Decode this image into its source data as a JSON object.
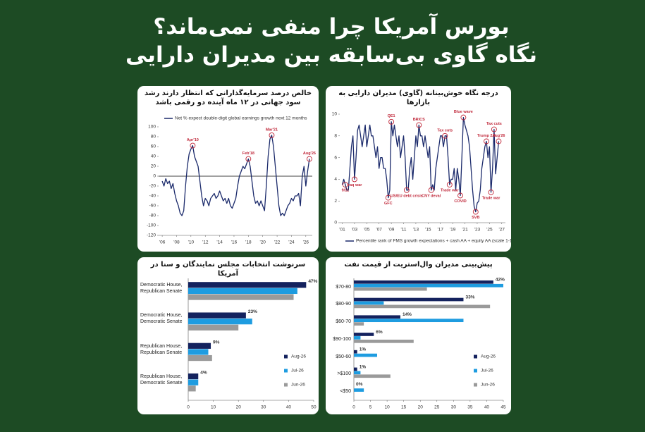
{
  "header": {
    "title_lines": [
      "بورس آمریکا چرا منفی نمی‌ماند؟",
      "نگاه گاوی بی‌سابقه بین مدیران دارایی"
    ]
  },
  "chart_data": [
    {
      "type": "line",
      "title": "خالص درصد سرمایه‌گذارانی که انتظار دارند رشد سود جهانی در ۱۲ ماه آینده دو رقمی باشد",
      "x": [
        2006,
        2006.25,
        2006.5,
        2006.75,
        2007,
        2007.25,
        2007.5,
        2007.75,
        2008,
        2008.25,
        2008.5,
        2008.75,
        2009,
        2009.25,
        2009.5,
        2009.75,
        2010,
        2010.25,
        2010.5,
        2010.75,
        2011,
        2011.25,
        2011.5,
        2011.75,
        2012,
        2012.25,
        2012.5,
        2012.75,
        2013,
        2013.25,
        2013.5,
        2013.75,
        2014,
        2014.25,
        2014.5,
        2014.75,
        2015,
        2015.25,
        2015.5,
        2015.75,
        2016,
        2016.25,
        2016.5,
        2016.75,
        2017,
        2017.25,
        2017.5,
        2017.75,
        2018,
        2018.25,
        2018.5,
        2018.75,
        2019,
        2019.25,
        2019.5,
        2019.75,
        2020,
        2020.25,
        2020.5,
        2020.75,
        2021,
        2021.25,
        2021.5,
        2021.75,
        2022,
        2022.25,
        2022.5,
        2022.75,
        2023,
        2023.25,
        2023.5,
        2023.75,
        2024,
        2024.25,
        2024.5,
        2024.75,
        2025,
        2025.25,
        2025.5,
        2025.75,
        2026,
        2026.25,
        2026.5
      ],
      "series": [
        {
          "name": "Net % expect double-digit global earnings growth next 12 months",
          "color": "#1b2a6b",
          "values": [
            -10,
            -20,
            -5,
            -15,
            -10,
            -25,
            -15,
            -35,
            -50,
            -60,
            -75,
            -80,
            -70,
            -20,
            20,
            45,
            55,
            62,
            40,
            30,
            20,
            -10,
            -40,
            -60,
            -45,
            -50,
            -60,
            -45,
            -40,
            -35,
            -45,
            -40,
            -30,
            -40,
            -50,
            -45,
            -55,
            -45,
            -60,
            -65,
            -55,
            -45,
            -20,
            0,
            10,
            20,
            15,
            25,
            35,
            20,
            -10,
            -40,
            -55,
            -50,
            -60,
            -50,
            -60,
            -70,
            -20,
            40,
            75,
            83,
            60,
            20,
            -20,
            -60,
            -80,
            -75,
            -80,
            -70,
            -60,
            -55,
            -45,
            -50,
            -40,
            -40,
            -35,
            -60,
            0,
            20,
            -20,
            10,
            35
          ]
        }
      ],
      "annotations": [
        {
          "label": "Apr'10",
          "x": 2010.25,
          "y": 62,
          "placement": "above"
        },
        {
          "label": "Feb'18",
          "x": 2018,
          "y": 35,
          "placement": "above"
        },
        {
          "label": "Mar'21",
          "x": 2021.25,
          "y": 83,
          "placement": "above"
        },
        {
          "label": "Aug'26",
          "x": 2026.5,
          "y": 35,
          "placement": "above"
        }
      ],
      "xlim": [
        2005.5,
        2026.9
      ],
      "xticks": [
        {
          "value": 2006,
          "label": "'06"
        },
        {
          "value": 2008,
          "label": "'08"
        },
        {
          "value": 2010,
          "label": "'10"
        },
        {
          "value": 2012,
          "label": "'12"
        },
        {
          "value": 2014,
          "label": "'14"
        },
        {
          "value": 2016,
          "label": "'16"
        },
        {
          "value": 2018,
          "label": "'18"
        },
        {
          "value": 2020,
          "label": "'20"
        },
        {
          "value": 2022,
          "label": "'22"
        },
        {
          "value": 2024,
          "label": "'24"
        },
        {
          "value": 2026,
          "label": "'26"
        }
      ],
      "ylim": [
        -120,
        100
      ],
      "yticks": [
        -120,
        -100,
        -80,
        -60,
        -40,
        -20,
        0,
        20,
        40,
        60,
        80,
        100
      ],
      "zero_line": true,
      "legend": "top",
      "annotation_color": "#c0283a"
    },
    {
      "type": "line",
      "title": "درجه نگاه خوش‌بینانه (گاوی) مدیران دارایی به بازارها",
      "x": [
        2001,
        2001.25,
        2001.5,
        2001.75,
        2002,
        2002.25,
        2002.5,
        2002.75,
        2003,
        2003.25,
        2003.5,
        2003.75,
        2004,
        2004.25,
        2004.5,
        2004.75,
        2005,
        2005.25,
        2005.5,
        2005.75,
        2006,
        2006.25,
        2006.5,
        2006.75,
        2007,
        2007.25,
        2007.5,
        2007.75,
        2008,
        2008.25,
        2008.5,
        2008.75,
        2009,
        2009.25,
        2009.5,
        2009.75,
        2010,
        2010.25,
        2010.5,
        2010.75,
        2011,
        2011.25,
        2011.5,
        2011.75,
        2012,
        2012.25,
        2012.5,
        2012.75,
        2013,
        2013.25,
        2013.5,
        2013.75,
        2014,
        2014.25,
        2014.5,
        2014.75,
        2015,
        2015.25,
        2015.5,
        2015.75,
        2016,
        2016.25,
        2016.5,
        2016.75,
        2017,
        2017.25,
        2017.5,
        2017.75,
        2018,
        2018.25,
        2018.5,
        2018.75,
        2019,
        2019.25,
        2019.5,
        2019.75,
        2020,
        2020.25,
        2020.5,
        2020.75,
        2021,
        2021.25,
        2021.5,
        2021.75,
        2022,
        2022.25,
        2022.5,
        2022.75,
        2023,
        2023.25,
        2023.5,
        2023.75,
        2024,
        2024.25,
        2024.5,
        2024.75,
        2025,
        2025.25,
        2025.5,
        2025.75,
        2026,
        2026.25,
        2026.5
      ],
      "series": [
        {
          "name": "Percentile rank of FMS growth expectations + cash AA + equity AA (scale 1-10)",
          "color": "#1b2a6b",
          "values": [
            3.5,
            4,
            3.5,
            3,
            3,
            5,
            7,
            8,
            4,
            6,
            8.5,
            9,
            8,
            7,
            8,
            9,
            7,
            8,
            9,
            8,
            8,
            7,
            6,
            7,
            5,
            6,
            6,
            5,
            5,
            4,
            2.3,
            3,
            9.3,
            8,
            9,
            8,
            7,
            8,
            6,
            7,
            8,
            6,
            3,
            3,
            5,
            6,
            4,
            6,
            8,
            7,
            9,
            8,
            8,
            7,
            8,
            7,
            6,
            7,
            3,
            3.5,
            3,
            5,
            6,
            7,
            8,
            8,
            7,
            8,
            8,
            6,
            3.5,
            4,
            4,
            5,
            3,
            5,
            4,
            2.5,
            6,
            9.7,
            9,
            8.5,
            8,
            7,
            5,
            3,
            1.5,
            1,
            1.8,
            2,
            3,
            5,
            6,
            7,
            7.5,
            6,
            7,
            2.8,
            5,
            8.6,
            4.5,
            6,
            7.5
          ]
        }
      ],
      "annotations": [
        {
          "label": "9/11",
          "x": 2001.5,
          "y": 3.5,
          "placement": "below"
        },
        {
          "label": "Iraq war",
          "x": 2003,
          "y": 4,
          "placement": "below"
        },
        {
          "label": "QE1",
          "x": 2009,
          "y": 9.3,
          "placement": "above"
        },
        {
          "label": "GFC",
          "x": 2008.5,
          "y": 2.3,
          "placement": "below"
        },
        {
          "label": "US/EU debt crisis",
          "x": 2011.5,
          "y": 3,
          "placement": "below"
        },
        {
          "label": "BRICS",
          "x": 2013.5,
          "y": 9,
          "placement": "above"
        },
        {
          "label": "CNY deval",
          "x": 2015.5,
          "y": 3,
          "placement": "below"
        },
        {
          "label": "Tax cuts",
          "x": 2017.75,
          "y": 8,
          "placement": "above"
        },
        {
          "label": "Trade war",
          "x": 2018.5,
          "y": 3.5,
          "placement": "below"
        },
        {
          "label": "Blue wave",
          "x": 2020.75,
          "y": 9.7,
          "placement": "above"
        },
        {
          "label": "COVID",
          "x": 2020.25,
          "y": 2.5,
          "placement": "below"
        },
        {
          "label": "SVB",
          "x": 2022.75,
          "y": 1,
          "placement": "below"
        },
        {
          "label": "Trump 2.0",
          "x": 2024.5,
          "y": 7.5,
          "placement": "above"
        },
        {
          "label": "Trade war",
          "x": 2025.25,
          "y": 2.8,
          "placement": "below"
        },
        {
          "label": "Tax cuts",
          "x": 2025.75,
          "y": 8.6,
          "placement": "above"
        },
        {
          "label": "Aug'26",
          "x": 2026.5,
          "y": 7.5,
          "placement": "above"
        }
      ],
      "xlim": [
        2000.6,
        2027.6
      ],
      "xticks": [
        {
          "value": 2001,
          "label": "'01"
        },
        {
          "value": 2003,
          "label": "'03"
        },
        {
          "value": 2005,
          "label": "'05"
        },
        {
          "value": 2007,
          "label": "'07"
        },
        {
          "value": 2009,
          "label": "'09"
        },
        {
          "value": 2011,
          "label": "'11"
        },
        {
          "value": 2013,
          "label": "'13"
        },
        {
          "value": 2015,
          "label": "'15"
        },
        {
          "value": 2017,
          "label": "'17"
        },
        {
          "value": 2019,
          "label": "'19"
        },
        {
          "value": 2021,
          "label": "'21"
        },
        {
          "value": 2023,
          "label": "'23"
        },
        {
          "value": 2025,
          "label": "'25"
        },
        {
          "value": 2027,
          "label": "'27"
        }
      ],
      "ylim": [
        0,
        10
      ],
      "yticks": [
        0,
        2,
        4,
        6,
        8,
        10
      ],
      "zero_line": false,
      "legend": "bottom",
      "annotation_color": "#c0283a"
    },
    {
      "type": "hbar",
      "title": "سرنوشت انتخابات مجلس نمایندگان و سنا در آمریکا",
      "categories": [
        "Democratic House, Republican Senate",
        "Democratic House, Democratic Senate",
        "Republican House, Republican Senate",
        "Republican House, Democratic Senate"
      ],
      "series": [
        {
          "name": "Aug-26",
          "color": "#14225e",
          "values": [
            47,
            23,
            9,
            4
          ],
          "value_labels": [
            "47%",
            "23%",
            "9%",
            "4%"
          ]
        },
        {
          "name": "Jul-26",
          "color": "#1e9ce0",
          "values": [
            43.5,
            25.5,
            8,
            4
          ]
        },
        {
          "name": "Jun-26",
          "color": "#9a9a9a",
          "values": [
            42,
            20,
            9.5,
            3
          ]
        }
      ],
      "xlim": [
        0,
        50
      ],
      "xticks": [
        0,
        10,
        20,
        30,
        40,
        50
      ],
      "legend": "bottom-right",
      "value_label_color": "#c0283a"
    },
    {
      "type": "hbar",
      "title": "پیش‌بینی مدیران وال‌استریت از قیمت نفت",
      "categories": [
        "$70-80",
        "$80-90",
        "$60-70",
        "$90-100",
        "$50-60",
        ">$100",
        "<$50"
      ],
      "series": [
        {
          "name": "Aug-26",
          "color": "#14225e",
          "values": [
            42,
            33,
            14,
            6,
            1,
            1,
            0
          ],
          "value_labels": [
            "42%",
            "33%",
            "14%",
            "6%",
            "1%",
            "1%",
            "0%"
          ]
        },
        {
          "name": "Jul-26",
          "color": "#1e9ce0",
          "values": [
            45,
            9,
            33,
            2,
            7,
            2,
            3
          ]
        },
        {
          "name": "Jun-26",
          "color": "#9a9a9a",
          "values": [
            22,
            41,
            3,
            18,
            0,
            11,
            0
          ]
        }
      ],
      "xlim": [
        0,
        45
      ],
      "xticks": [
        0,
        5,
        10,
        15,
        20,
        25,
        30,
        35,
        40,
        45
      ],
      "legend": "bottom-right",
      "value_label_color": "#c0283a"
    }
  ]
}
